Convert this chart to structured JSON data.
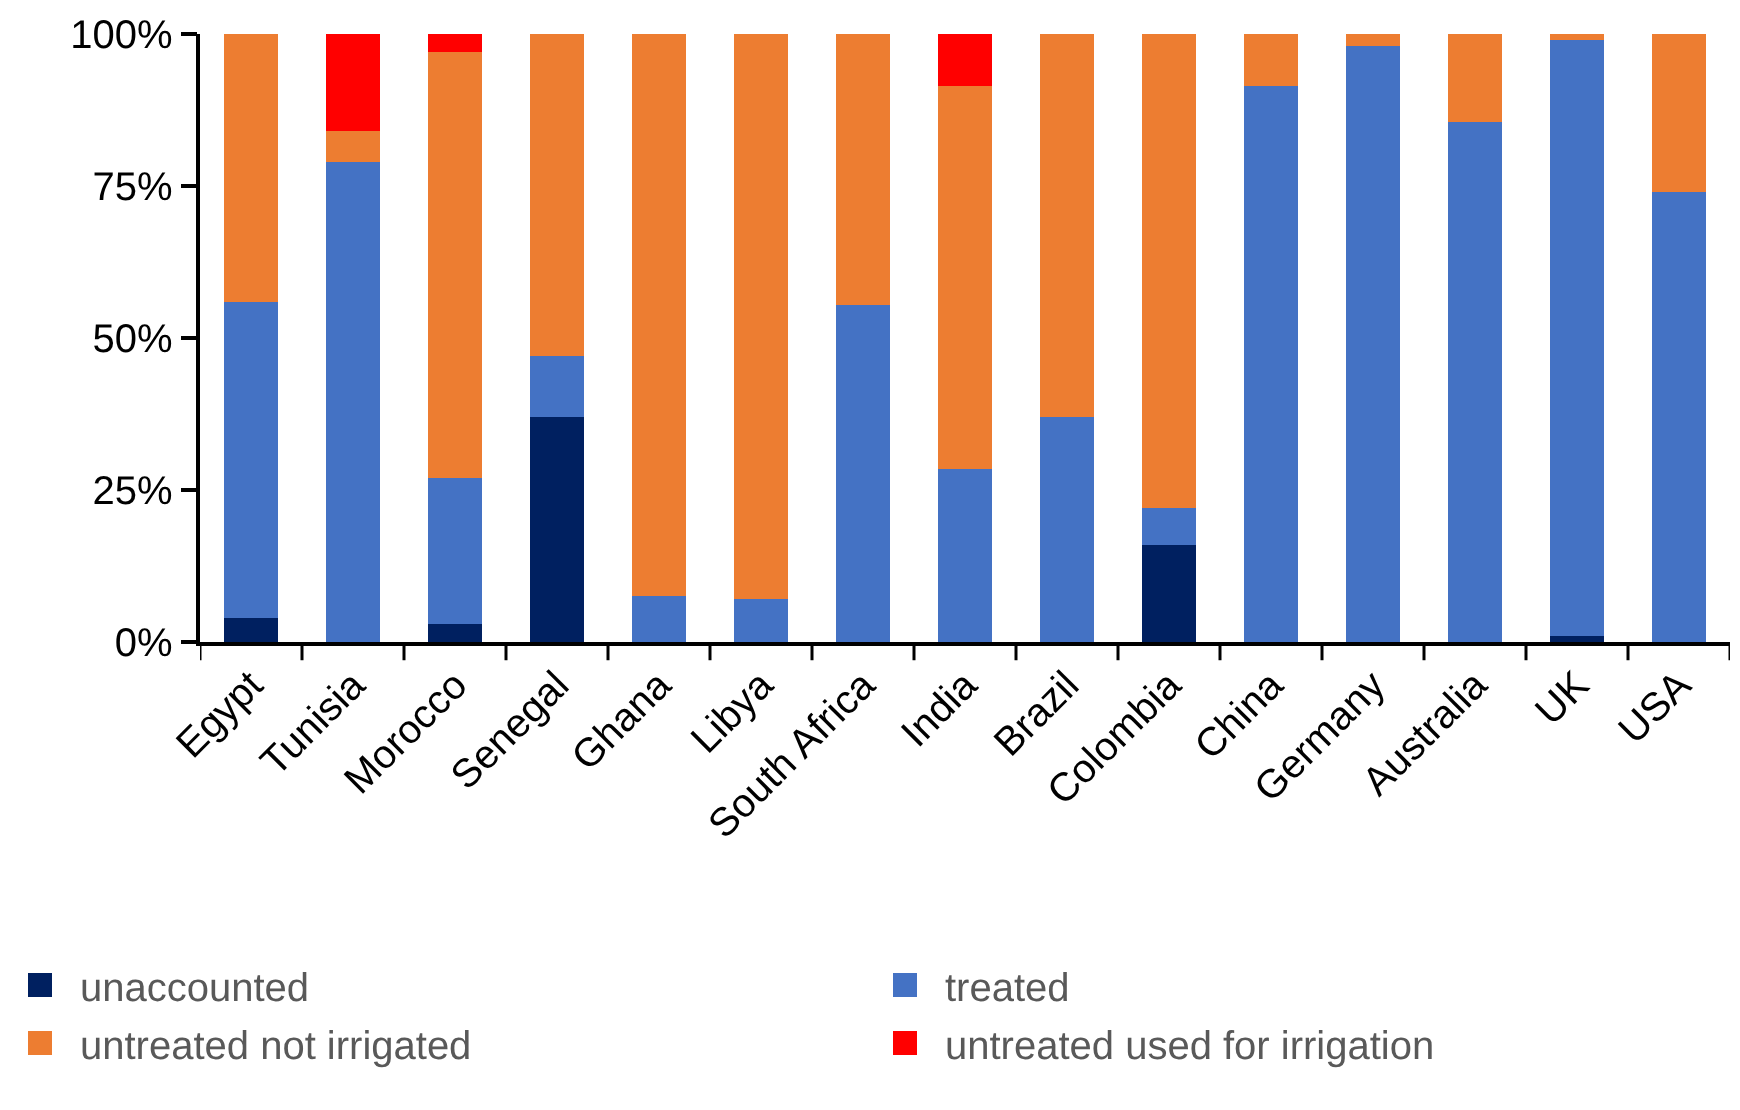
{
  "chart_data": {
    "type": "bar",
    "stacked": true,
    "categories": [
      "Egypt",
      "Tunisia",
      "Morocco",
      "Senegal",
      "Ghana",
      "Libya",
      "South Africa",
      "India",
      "Brazil",
      "Colombia",
      "China",
      "Germany",
      "Australia",
      "UK",
      "USA"
    ],
    "series": [
      {
        "name": "unaccounted",
        "color": "#002060",
        "values": [
          4,
          0,
          3,
          37,
          0,
          0,
          0,
          0,
          0,
          16,
          0,
          0,
          0,
          1,
          0
        ]
      },
      {
        "name": "treated",
        "color": "#4472c4",
        "values": [
          52,
          79,
          24,
          10,
          7.5,
          7,
          55.5,
          28.5,
          37,
          6,
          91.5,
          98,
          85.5,
          98,
          74
        ]
      },
      {
        "name": "untreated not irrigated",
        "color": "#ed7d31",
        "values": [
          44,
          5,
          70,
          53,
          92.5,
          93,
          44.5,
          63,
          63,
          78,
          8.5,
          2,
          14.5,
          1,
          26
        ]
      },
      {
        "name": "untreated used for irrigation",
        "color": "#ff0000",
        "values": [
          0,
          16,
          3,
          0,
          0,
          0,
          0,
          8.5,
          0,
          0,
          0,
          0,
          0,
          0,
          0
        ]
      }
    ],
    "ylim": [
      0,
      100
    ],
    "yticks": [
      {
        "value": 0,
        "label": "0%"
      },
      {
        "value": 25,
        "label": "25%"
      },
      {
        "value": 50,
        "label": "50%"
      },
      {
        "value": 75,
        "label": "75%"
      },
      {
        "value": 100,
        "label": "100%"
      }
    ],
    "grid": false,
    "legend": "bottom"
  }
}
